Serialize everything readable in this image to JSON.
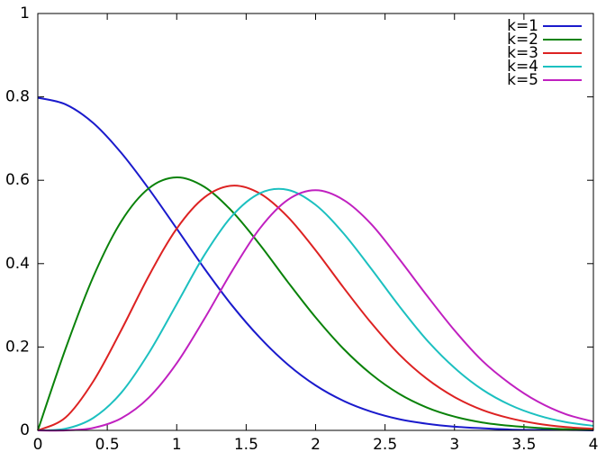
{
  "chart_data": {
    "type": "line",
    "x": [
      0,
      0.2,
      0.4,
      0.6,
      0.8,
      1.0,
      1.2,
      1.4,
      1.6,
      1.8,
      2.0,
      2.2,
      2.4,
      2.6,
      2.8,
      3.0,
      3.2,
      3.4,
      3.6,
      3.8,
      4.0
    ],
    "series": [
      {
        "name": "k=1",
        "color": "#1a1acc",
        "values": [
          0.798,
          0.782,
          0.737,
          0.666,
          0.579,
          0.484,
          0.388,
          0.299,
          0.222,
          0.158,
          0.108,
          0.071,
          0.045,
          0.027,
          0.016,
          0.009,
          0.005,
          0.002,
          0.001,
          0.001,
          0.0
        ]
      },
      {
        "name": "k=2",
        "color": "#0a820a",
        "values": [
          0,
          0.196,
          0.369,
          0.501,
          0.581,
          0.607,
          0.584,
          0.525,
          0.445,
          0.356,
          0.271,
          0.196,
          0.135,
          0.088,
          0.055,
          0.033,
          0.019,
          0.011,
          0.006,
          0.003,
          0.001
        ]
      },
      {
        "name": "k=3",
        "color": "#dd2222",
        "values": [
          0,
          0.031,
          0.118,
          0.24,
          0.371,
          0.484,
          0.559,
          0.587,
          0.568,
          0.512,
          0.432,
          0.343,
          0.258,
          0.183,
          0.124,
          0.08,
          0.049,
          0.029,
          0.016,
          0.008,
          0.004
        ]
      },
      {
        "name": "k=4",
        "color": "#1cc0c0",
        "values": [
          0,
          0.004,
          0.03,
          0.09,
          0.186,
          0.303,
          0.421,
          0.515,
          0.569,
          0.577,
          0.541,
          0.473,
          0.388,
          0.299,
          0.217,
          0.15,
          0.098,
          0.061,
          0.036,
          0.02,
          0.011
        ]
      },
      {
        "name": "k=5",
        "color": "#c020c0",
        "values": [
          0,
          0.0,
          0.006,
          0.029,
          0.079,
          0.161,
          0.268,
          0.383,
          0.485,
          0.553,
          0.576,
          0.553,
          0.495,
          0.412,
          0.324,
          0.24,
          0.167,
          0.112,
          0.069,
          0.039,
          0.021
        ]
      }
    ],
    "xlim": [
      0,
      4
    ],
    "xticks": [
      0,
      0.5,
      1,
      1.5,
      2,
      2.5,
      3,
      3.5,
      4
    ],
    "ylim": [
      0,
      1
    ],
    "yticks": [
      0,
      0.2,
      0.4,
      0.6,
      0.8,
      1
    ],
    "grid": false,
    "legend": "upper right"
  }
}
